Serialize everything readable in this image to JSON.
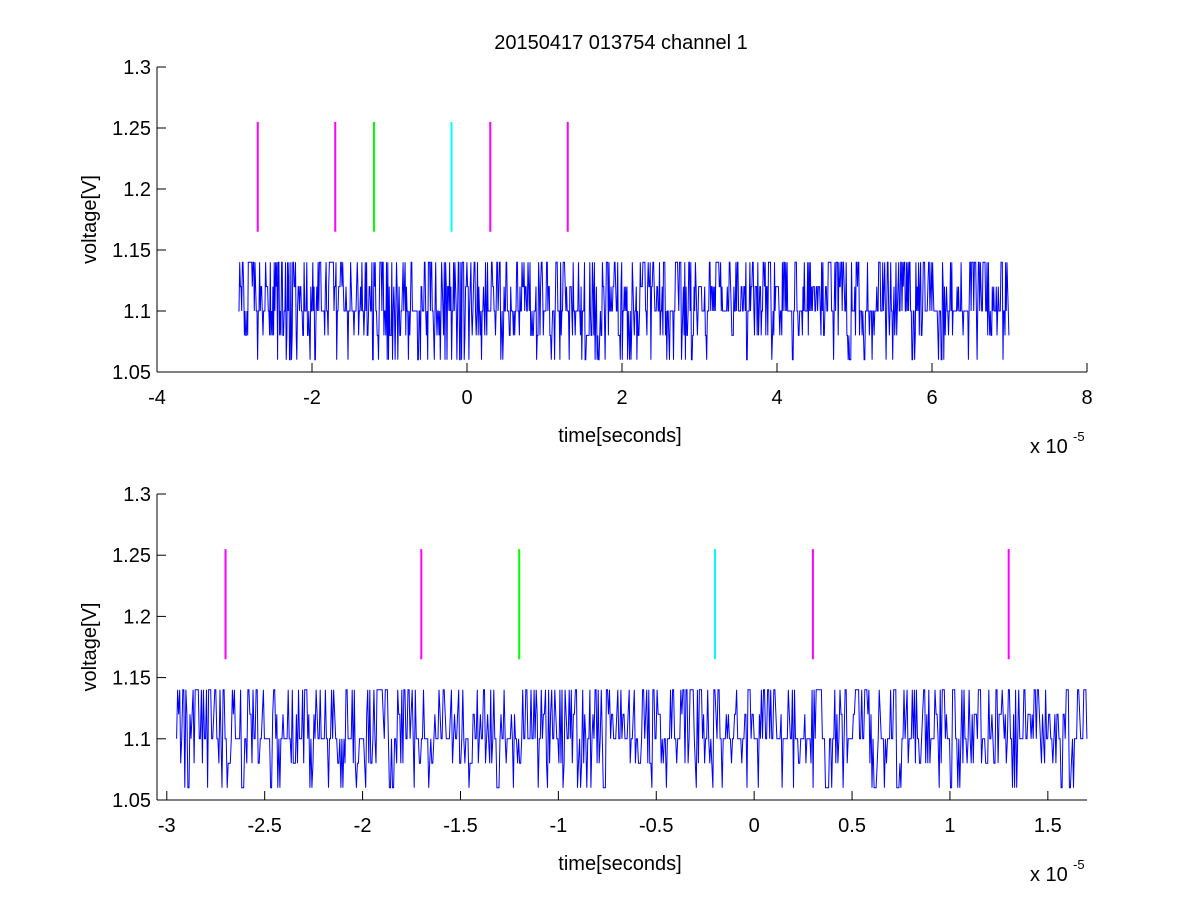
{
  "chart_data": [
    {
      "type": "line",
      "title": "20150417 013754 channel 1",
      "xlabel": "time[seconds]",
      "ylabel": "voltage[V]",
      "x_multiplier": "x 10",
      "x_exponent": "-5",
      "xlim": [
        -4,
        8
      ],
      "ylim": [
        1.05,
        1.3
      ],
      "xticks": [
        "-4",
        "-2",
        "0",
        "2",
        "4",
        "6",
        "8"
      ],
      "yticks": [
        "1.05",
        "1.1",
        "1.15",
        "1.2",
        "1.25",
        "1.3"
      ],
      "signal": {
        "color": "#0000ff",
        "x_range": [
          -2.95,
          7.0
        ],
        "levels": [
          1.06,
          1.08,
          1.1,
          1.12,
          1.14
        ],
        "baseline": 1.1
      },
      "markers": [
        {
          "x": -2.7,
          "color": "#ff00ff",
          "y": [
            1.165,
            1.255
          ]
        },
        {
          "x": -1.7,
          "color": "#ff00ff",
          "y": [
            1.165,
            1.255
          ]
        },
        {
          "x": -1.2,
          "color": "#00ff00",
          "y": [
            1.165,
            1.255
          ]
        },
        {
          "x": -0.2,
          "color": "#00ffff",
          "y": [
            1.165,
            1.255
          ]
        },
        {
          "x": 0.3,
          "color": "#ff00ff",
          "y": [
            1.165,
            1.255
          ]
        },
        {
          "x": 1.3,
          "color": "#ff00ff",
          "y": [
            1.165,
            1.255
          ]
        }
      ]
    },
    {
      "type": "line",
      "title": "",
      "xlabel": "time[seconds]",
      "ylabel": "voltage[V]",
      "x_multiplier": "x 10",
      "x_exponent": "-5",
      "xlim": [
        -3.05,
        1.7
      ],
      "ylim": [
        1.05,
        1.3
      ],
      "xticks": [
        "-3",
        "-2.5",
        "-2",
        "-1.5",
        "-1",
        "-0.5",
        "0",
        "0.5",
        "1",
        "1.5"
      ],
      "yticks": [
        "1.05",
        "1.1",
        "1.15",
        "1.2",
        "1.25",
        "1.3"
      ],
      "signal": {
        "color": "#0000ff",
        "x_range": [
          -2.95,
          1.7
        ],
        "levels": [
          1.06,
          1.08,
          1.1,
          1.12,
          1.14
        ],
        "baseline": 1.1
      },
      "markers": [
        {
          "x": -2.7,
          "color": "#ff00ff",
          "y": [
            1.165,
            1.255
          ]
        },
        {
          "x": -1.7,
          "color": "#ff00ff",
          "y": [
            1.165,
            1.255
          ]
        },
        {
          "x": -1.2,
          "color": "#00ff00",
          "y": [
            1.165,
            1.255
          ]
        },
        {
          "x": -0.2,
          "color": "#00ffff",
          "y": [
            1.165,
            1.255
          ]
        },
        {
          "x": 0.3,
          "color": "#ff00ff",
          "y": [
            1.165,
            1.255
          ]
        },
        {
          "x": 1.3,
          "color": "#ff00ff",
          "y": [
            1.165,
            1.255
          ]
        }
      ]
    }
  ]
}
